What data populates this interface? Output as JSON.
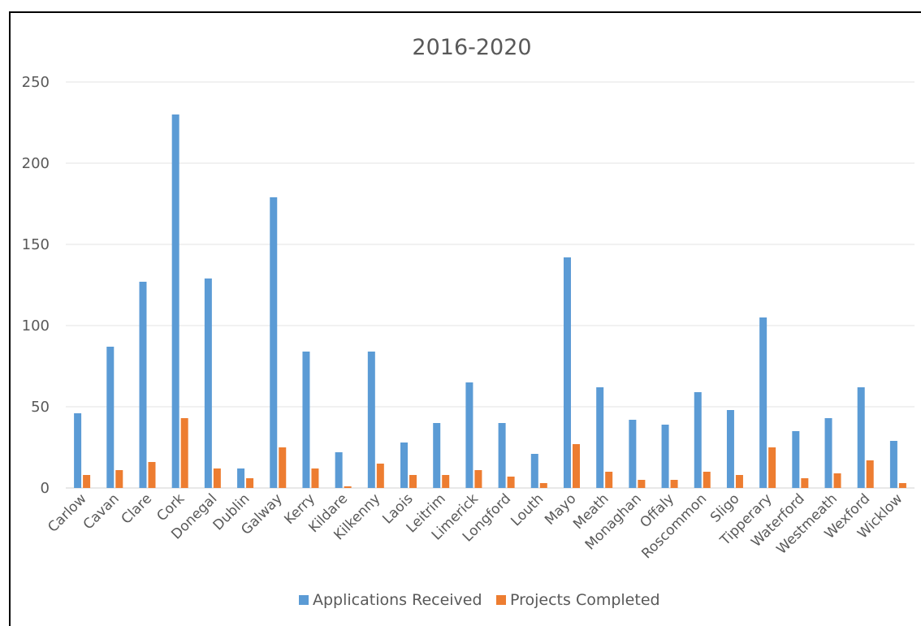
{
  "chart_data": {
    "type": "bar",
    "title": "2016-2020",
    "xlabel": "",
    "ylabel": "",
    "ylim": [
      0,
      250
    ],
    "yticks": [
      0,
      50,
      100,
      150,
      200,
      250
    ],
    "grid": true,
    "legend_position": "bottom",
    "categories": [
      "Carlow",
      "Cavan",
      "Clare",
      "Cork",
      "Donegal",
      "Dublin",
      "Galway",
      "Kerry",
      "Kildare",
      "Kilkenny",
      "Laois",
      "Leitrim",
      "Limerick",
      "Longford",
      "Louth",
      "Mayo",
      "Meath",
      "Monaghan",
      "Offaly",
      "Roscommon",
      "Sligo",
      "Tipperary",
      "Waterford",
      "Westmeath",
      "Wexford",
      "Wicklow"
    ],
    "series": [
      {
        "name": "Applications Received",
        "color": "#5b9bd5",
        "values": [
          46,
          87,
          127,
          230,
          129,
          12,
          179,
          84,
          22,
          84,
          28,
          40,
          65,
          40,
          21,
          142,
          62,
          42,
          39,
          59,
          48,
          105,
          35,
          43,
          62,
          29
        ]
      },
      {
        "name": "Projects Completed",
        "color": "#ed7d31",
        "values": [
          8,
          11,
          16,
          43,
          12,
          6,
          25,
          12,
          1,
          15,
          8,
          8,
          11,
          7,
          3,
          27,
          10,
          5,
          5,
          10,
          8,
          25,
          6,
          9,
          17,
          3
        ]
      }
    ]
  }
}
